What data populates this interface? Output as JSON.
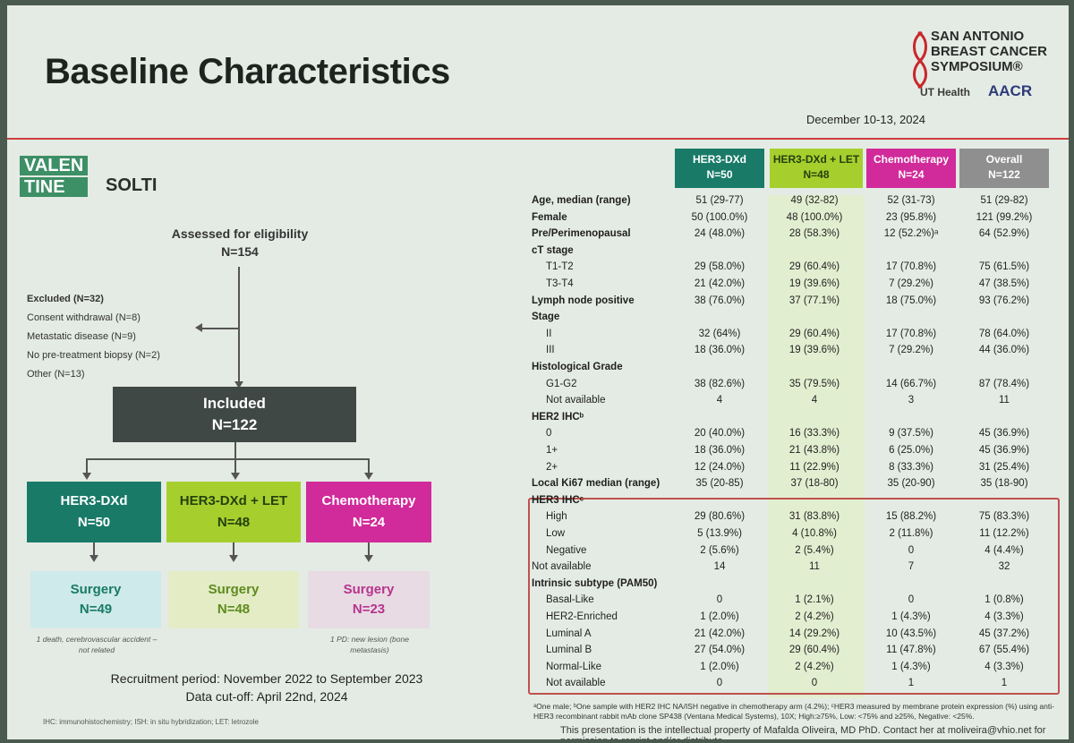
{
  "slide": {
    "title": "Baseline Characteristics",
    "date": "December 10-13, 2024",
    "sabcs": [
      "SAN ANTONIO",
      "BREAST CANCER",
      "SYMPOSIUM®"
    ],
    "ut_health": "UT Health",
    "aacr": "AACR",
    "valentine": [
      "VALEN",
      "TINE"
    ],
    "solti": "SOLTI",
    "brand_colors": {
      "teal": "#197a68",
      "lime": "#a6cf2e",
      "magenta": "#d12a9a",
      "gray": "#8f8f8f"
    }
  },
  "flow": {
    "assessed": {
      "label": "Assessed for eligibility",
      "n": "N=154"
    },
    "excluded": {
      "title": "Excluded (N=32)",
      "items": [
        "Consent withdrawal (N=8)",
        "Metastatic disease (N=9)",
        "No pre-treatment biopsy (N=2)",
        "Other (N=13)"
      ]
    },
    "included": {
      "label": "Included",
      "n": "N=122"
    },
    "arms": [
      {
        "name": "HER3-DXd",
        "n": "N=50",
        "surgery": "Surgery",
        "surgery_n": "N=49",
        "note": "1 death, cerebrovascular accident – not related"
      },
      {
        "name": "HER3-DXd + LET",
        "n": "N=48",
        "surgery": "Surgery",
        "surgery_n": "N=48",
        "note": ""
      },
      {
        "name": "Chemotherapy",
        "n": "N=24",
        "surgery": "Surgery",
        "surgery_n": "N=23",
        "note": "1 PD: new lesion (bone metastasis)"
      }
    ],
    "recruitment": "Recruitment period: November 2022 to September 2023",
    "cutoff": "Data cut-off: April 22nd, 2024"
  },
  "table": {
    "columns": [
      {
        "name": "HER3-DXd",
        "n": "N=50"
      },
      {
        "name": "HER3-DXd + LET",
        "n": "N=48"
      },
      {
        "name": "Chemotherapy",
        "n": "N=24"
      },
      {
        "name": "Overall",
        "n": "N=122"
      }
    ],
    "rows": [
      {
        "label": "Age, median (range)",
        "bold": true,
        "indent": false,
        "values": [
          "51 (29-77)",
          "49 (32-82)",
          "52 (31-73)",
          "51 (29-82)"
        ]
      },
      {
        "label": "Female",
        "bold": true,
        "indent": false,
        "values": [
          "50 (100.0%)",
          "48 (100.0%)",
          "23 (95.8%)",
          "121 (99.2%)"
        ]
      },
      {
        "label": "Pre/Perimenopausal",
        "bold": true,
        "indent": false,
        "values": [
          "24 (48.0%)",
          "28 (58.3%)",
          "12 (52.2%)ᵃ",
          "64 (52.9%)"
        ]
      },
      {
        "label": "cT stage",
        "bold": true,
        "indent": false,
        "values": [
          "",
          "",
          "",
          ""
        ]
      },
      {
        "label": "T1-T2",
        "bold": false,
        "indent": true,
        "values": [
          "29 (58.0%)",
          "29 (60.4%)",
          "17 (70.8%)",
          "75 (61.5%)"
        ]
      },
      {
        "label": "T3-T4",
        "bold": false,
        "indent": true,
        "values": [
          "21 (42.0%)",
          "19 (39.6%)",
          "7 (29.2%)",
          "47 (38.5%)"
        ]
      },
      {
        "label": "Lymph node positive",
        "bold": true,
        "indent": false,
        "values": [
          "38 (76.0%)",
          "37 (77.1%)",
          "18 (75.0%)",
          "93 (76.2%)"
        ]
      },
      {
        "label": "Stage",
        "bold": true,
        "indent": false,
        "values": [
          "",
          "",
          "",
          ""
        ]
      },
      {
        "label": "II",
        "bold": false,
        "indent": true,
        "values": [
          "32 (64%)",
          "29 (60.4%)",
          "17 (70.8%)",
          "78 (64.0%)"
        ]
      },
      {
        "label": "III",
        "bold": false,
        "indent": true,
        "values": [
          "18 (36.0%)",
          "19 (39.6%)",
          "7 (29.2%)",
          "44 (36.0%)"
        ]
      },
      {
        "label": "Histological Grade",
        "bold": true,
        "indent": false,
        "values": [
          "",
          "",
          "",
          ""
        ]
      },
      {
        "label": "G1-G2",
        "bold": false,
        "indent": true,
        "values": [
          "38 (82.6%)",
          "35 (79.5%)",
          "14 (66.7%)",
          "87 (78.4%)"
        ]
      },
      {
        "label": "Not available",
        "bold": false,
        "indent": true,
        "values": [
          "4",
          "4",
          "3",
          "11"
        ]
      },
      {
        "label": "HER2 IHCᵇ",
        "bold": true,
        "indent": false,
        "values": [
          "",
          "",
          "",
          ""
        ]
      },
      {
        "label": "0",
        "bold": false,
        "indent": true,
        "values": [
          "20 (40.0%)",
          "16 (33.3%)",
          "9 (37.5%)",
          "45 (36.9%)"
        ]
      },
      {
        "label": "1+",
        "bold": false,
        "indent": true,
        "values": [
          "18 (36.0%)",
          "21 (43.8%)",
          "6 (25.0%)",
          "45 (36.9%)"
        ]
      },
      {
        "label": "2+",
        "bold": false,
        "indent": true,
        "values": [
          "12 (24.0%)",
          "11 (22.9%)",
          "8 (33.3%)",
          "31 (25.4%)"
        ]
      },
      {
        "label": "Local Ki67 median (range)",
        "bold": true,
        "indent": false,
        "values": [
          "35 (20-85)",
          "37 (18-80)",
          "35 (20-90)",
          "35 (18-90)"
        ]
      },
      {
        "label": "HER3 IHCᶜ",
        "bold": true,
        "indent": false,
        "values": [
          "",
          "",
          "",
          ""
        ]
      },
      {
        "label": "High",
        "bold": false,
        "indent": true,
        "values": [
          "29 (80.6%)",
          "31 (83.8%)",
          "15 (88.2%)",
          "75 (83.3%)"
        ]
      },
      {
        "label": "Low",
        "bold": false,
        "indent": true,
        "values": [
          "5 (13.9%)",
          "4 (10.8%)",
          "2 (11.8%)",
          "11 (12.2%)"
        ]
      },
      {
        "label": "Negative",
        "bold": false,
        "indent": true,
        "values": [
          "2 (5.6%)",
          "2 (5.4%)",
          "0",
          "4 (4.4%)"
        ]
      },
      {
        "label": "Not available",
        "bold": false,
        "indent": false,
        "values": [
          "14",
          "11",
          "7",
          "32"
        ]
      },
      {
        "label": "Intrinsic subtype (PAM50)",
        "bold": true,
        "indent": false,
        "values": [
          "",
          "",
          "",
          ""
        ]
      },
      {
        "label": "Basal-Like",
        "bold": false,
        "indent": true,
        "values": [
          "0",
          "1 (2.1%)",
          "0",
          "1 (0.8%)"
        ]
      },
      {
        "label": "HER2-Enriched",
        "bold": false,
        "indent": true,
        "values": [
          "1 (2.0%)",
          "2 (4.2%)",
          "1 (4.3%)",
          "4 (3.3%)"
        ]
      },
      {
        "label": "Luminal A",
        "bold": false,
        "indent": true,
        "values": [
          "21 (42.0%)",
          "14 (29.2%)",
          "10 (43.5%)",
          "45 (37.2%)"
        ]
      },
      {
        "label": "Luminal B",
        "bold": false,
        "indent": true,
        "values": [
          "27 (54.0%)",
          "29 (60.4%)",
          "11 (47.8%)",
          "67 (55.4%)"
        ]
      },
      {
        "label": "Normal-Like",
        "bold": false,
        "indent": true,
        "values": [
          "1 (2.0%)",
          "2 (4.2%)",
          "1 (4.3%)",
          "4 (3.3%)"
        ]
      },
      {
        "label": "Not available",
        "bold": false,
        "indent": true,
        "values": [
          "0",
          "0",
          "1",
          "1"
        ]
      }
    ]
  },
  "footnotes": {
    "left": "IHC: immunohistochemistry; ISH: in situ hybridization; LET: letrozole",
    "right": "ᵃOne male; ᵇOne sample with HER2 IHC NA/ISH negative in chemotherapy arm (4.2%); ᶜHER3 measured by membrane protein expression (%) using anti-HER3 recombinant rabbit mAb clone SP438 (Ventana Medical Systems), 10X; High:≥75%, Low: <75% and ≥25%, Negative: <25%.",
    "ip": "This presentation is the intellectual property of Mafalda Oliveira, MD PhD. Contact her at moliveira@vhio.net for permission to reprint and/or distribute"
  }
}
